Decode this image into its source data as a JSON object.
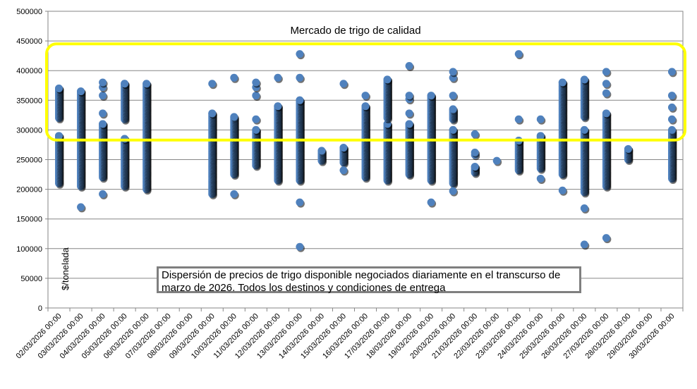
{
  "chart_data": {
    "type": "scatter",
    "title": "Mercado de trigo de calidad",
    "ylabel": "$/tonelada",
    "note": "Dispersión de precios de trigo disponible negociados diariamente en el transcurso de marzo de 2026. Todos los destinos y condiciones de entrega",
    "ylim": [
      0,
      500000
    ],
    "yticks": [
      "0",
      "50000",
      "100000",
      "150000",
      "200000",
      "250000",
      "300000",
      "350000",
      "400000",
      "450000",
      "500000"
    ],
    "ytick_values": [
      0,
      50000,
      100000,
      150000,
      200000,
      250000,
      300000,
      350000,
      400000,
      450000,
      500000
    ],
    "categories": [
      "02/03/2026 00:00",
      "03/03/2026 00:00",
      "04/03/2026 00:00",
      "05/03/2026 00:00",
      "06/03/2026 00:00",
      "07/03/2026 00:00",
      "08/03/2026 00:00",
      "09/03/2026 00:00",
      "10/03/2026 00:00",
      "11/03/2026 00:00",
      "12/03/2026 00:00",
      "13/03/2026 00:00",
      "14/03/2026 00:00",
      "15/03/2026 00:00",
      "16/03/2026 00:00",
      "17/03/2026 00:00",
      "18/03/2026 00:00",
      "19/03/2026 00:00",
      "20/03/2026 00:00",
      "21/03/2026 00:00",
      "22/03/2026 00:00",
      "23/03/2026 00:00",
      "24/03/2026 00:00",
      "25/03/2026 00:00",
      "26/03/2026 00:00",
      "27/03/2026 00:00",
      "28/03/2026 00:00",
      "29/03/2026 00:00",
      "30/03/2026 00:00"
    ],
    "series_color": "#4f81bd",
    "highlight_color": "#ffff00",
    "highlight_range": [
      283000,
      445000
    ],
    "grid": "horizontal",
    "groups": [
      {
        "date": "02/03/2026 00:00",
        "ranges": [
          [
            210000,
            290000
          ],
          [
            320000,
            370000
          ]
        ],
        "points": []
      },
      {
        "date": "03/03/2026 00:00",
        "ranges": [
          [
            205000,
            365000
          ]
        ],
        "points": [
          170000
        ]
      },
      {
        "date": "04/03/2026 00:00",
        "ranges": [
          [
            220000,
            310000
          ]
        ],
        "points": [
          192000,
          328000,
          358000,
          372000,
          380000
        ]
      },
      {
        "date": "05/03/2026 00:00",
        "ranges": [
          [
            205000,
            285000
          ],
          [
            318000,
            378000
          ]
        ],
        "points": []
      },
      {
        "date": "06/03/2026 00:00",
        "ranges": [
          [
            200000,
            378000
          ]
        ],
        "points": []
      },
      {
        "date": "07/03/2026 00:00",
        "ranges": [],
        "points": []
      },
      {
        "date": "08/03/2026 00:00",
        "ranges": [],
        "points": []
      },
      {
        "date": "09/03/2026 00:00",
        "ranges": [
          [
            192000,
            328000
          ]
        ],
        "points": [
          378000
        ]
      },
      {
        "date": "10/03/2026 00:00",
        "ranges": [
          [
            225000,
            322000
          ]
        ],
        "points": [
          192000,
          388000
        ]
      },
      {
        "date": "11/03/2026 00:00",
        "ranges": [
          [
            240000,
            300000
          ]
        ],
        "points": [
          318000,
          358000,
          372000,
          380000
        ]
      },
      {
        "date": "12/03/2026 00:00",
        "ranges": [
          [
            215000,
            340000
          ]
        ],
        "points": [
          388000
        ]
      },
      {
        "date": "13/03/2026 00:00",
        "ranges": [
          [
            215000,
            350000
          ]
        ],
        "points": [
          103000,
          178000,
          388000,
          428000
        ]
      },
      {
        "date": "14/03/2026 00:00",
        "ranges": [
          [
            248000,
            265000
          ]
        ],
        "points": []
      },
      {
        "date": "15/03/2026 00:00",
        "ranges": [
          [
            245000,
            270000
          ]
        ],
        "points": [
          232000,
          378000
        ]
      },
      {
        "date": "16/03/2026 00:00",
        "ranges": [
          [
            220000,
            340000
          ]
        ],
        "points": [
          358000
        ]
      },
      {
        "date": "17/03/2026 00:00",
        "ranges": [
          [
            215000,
            310000
          ],
          [
            320000,
            385000
          ]
        ],
        "points": []
      },
      {
        "date": "18/03/2026 00:00",
        "ranges": [
          [
            225000,
            310000
          ]
        ],
        "points": [
          328000,
          352000,
          358000,
          408000
        ]
      },
      {
        "date": "19/03/2026 00:00",
        "ranges": [
          [
            215000,
            358000
          ]
        ],
        "points": [
          178000
        ]
      },
      {
        "date": "20/03/2026 00:00",
        "ranges": [
          [
            210000,
            300000
          ],
          [
            318000,
            335000
          ]
        ],
        "points": [
          197000,
          358000,
          388000,
          398000
        ]
      },
      {
        "date": "21/03/2026 00:00",
        "ranges": [
          [
            228000,
            238000
          ]
        ],
        "points": [
          258000,
          262000,
          293000
        ]
      },
      {
        "date": "22/03/2026 00:00",
        "ranges": [],
        "points": [
          248000
        ]
      },
      {
        "date": "23/03/2026 00:00",
        "ranges": [
          [
            232000,
            282000
          ]
        ],
        "points": [
          318000,
          428000
        ]
      },
      {
        "date": "24/03/2026 00:00",
        "ranges": [
          [
            235000,
            290000
          ]
        ],
        "points": [
          218000,
          318000
        ]
      },
      {
        "date": "25/03/2026 00:00",
        "ranges": [
          [
            225000,
            380000
          ]
        ],
        "points": [
          198000
        ]
      },
      {
        "date": "26/03/2026 00:00",
        "ranges": [
          [
            195000,
            300000
          ],
          [
            322000,
            385000
          ]
        ],
        "points": [
          107000,
          168000
        ]
      },
      {
        "date": "27/03/2026 00:00",
        "ranges": [
          [
            205000,
            328000
          ]
        ],
        "points": [
          118000,
          362000,
          378000,
          398000
        ]
      },
      {
        "date": "28/03/2026 00:00",
        "ranges": [
          [
            250000,
            268000
          ]
        ],
        "points": []
      },
      {
        "date": "29/03/2026 00:00",
        "ranges": [],
        "points": []
      },
      {
        "date": "30/03/2026 00:00",
        "ranges": [
          [
            218000,
            300000
          ]
        ],
        "points": [
          318000,
          338000,
          358000,
          398000
        ]
      }
    ]
  }
}
